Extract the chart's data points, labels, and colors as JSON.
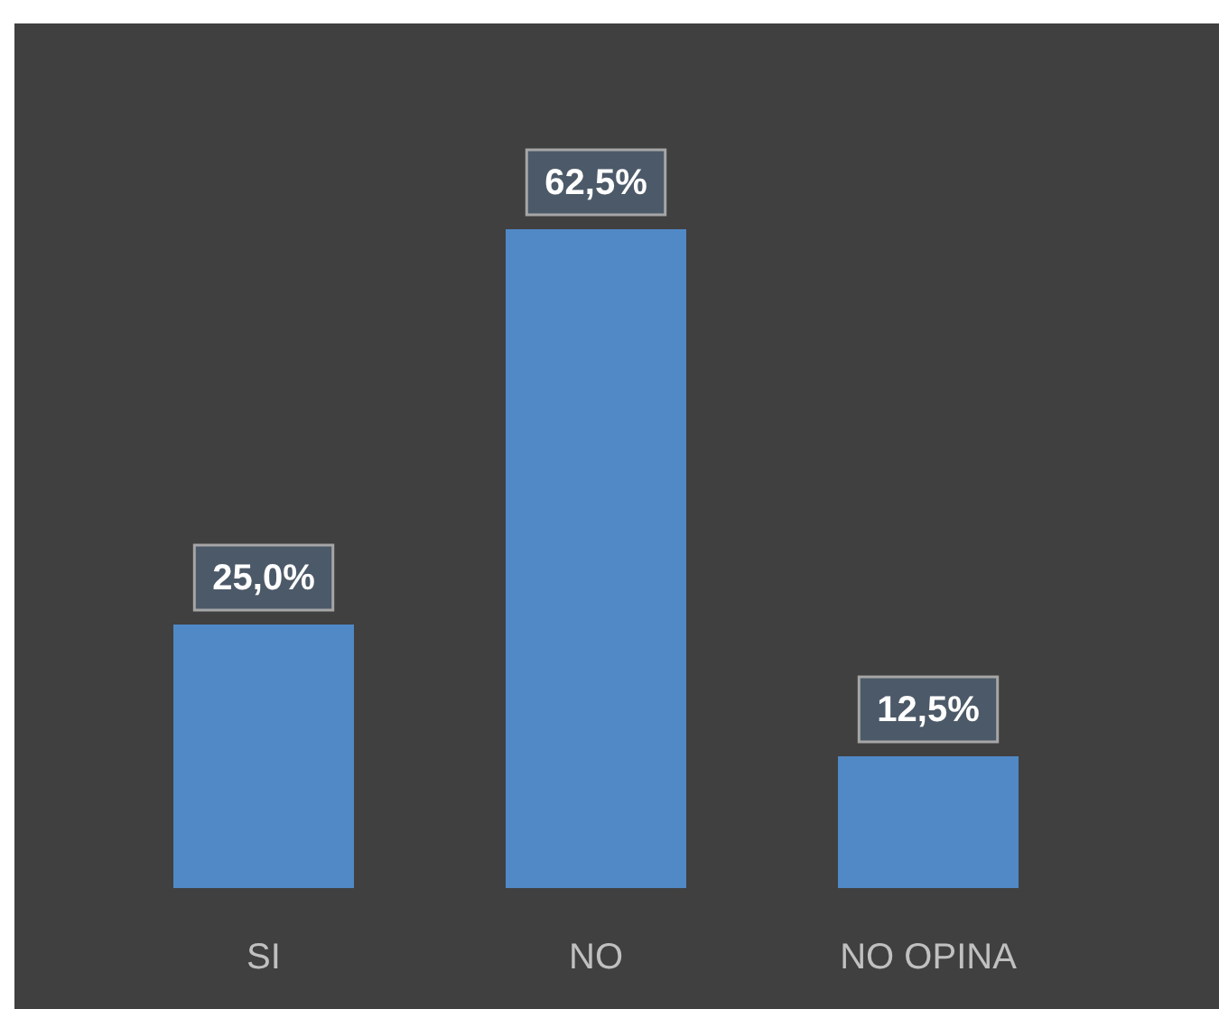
{
  "chart_data": {
    "type": "bar",
    "categories": [
      "SI",
      "NO",
      "NO OPINA"
    ],
    "values": [
      25.0,
      62.5,
      12.5
    ],
    "value_labels": [
      "25,0%",
      "62,5%",
      "12,5%"
    ],
    "color": "#5089c6"
  }
}
